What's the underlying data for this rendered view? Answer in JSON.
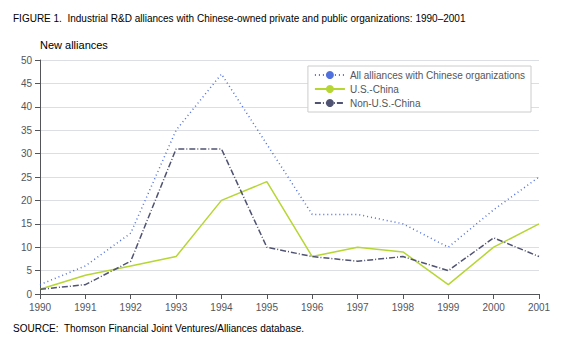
{
  "chart_data": {
    "type": "line",
    "title": "FIGURE 1.  Industrial R&D alliances with Chinese-owned private and public organizations: 1990–2001",
    "ylabel": "New alliances",
    "annotations": [
      "SOURCE:  Thomson Financial Joint Ventures/Alliances database."
    ],
    "x": [
      1990,
      1991,
      1992,
      1993,
      1994,
      1995,
      1996,
      1997,
      1998,
      1999,
      2000,
      2001
    ],
    "series": [
      {
        "name": "All alliances with Chinese organizations",
        "line_style": "dotted",
        "values": [
          2,
          6,
          13,
          35,
          47,
          32,
          17,
          17,
          15,
          10,
          18,
          25
        ]
      },
      {
        "name": "U.S.-China",
        "line_style": "solid",
        "values": [
          1,
          4,
          6,
          8,
          20,
          24,
          8,
          10,
          9,
          2,
          10,
          15
        ]
      },
      {
        "name": "Non-U.S.-China",
        "line_style": "dashdot",
        "values": [
          1,
          2,
          7,
          31,
          31,
          10,
          8,
          7,
          8,
          5,
          12,
          8
        ]
      }
    ],
    "xlim": [
      1990,
      2001
    ],
    "xticks": [
      1990,
      1991,
      1992,
      1993,
      1994,
      1995,
      1996,
      1997,
      1998,
      1999,
      2000,
      2001
    ],
    "ylim": [
      0,
      50
    ],
    "yticks": [
      0,
      5,
      10,
      15,
      20,
      25,
      30,
      35,
      40,
      45,
      50
    ],
    "grid": true,
    "legend": "upper right"
  }
}
